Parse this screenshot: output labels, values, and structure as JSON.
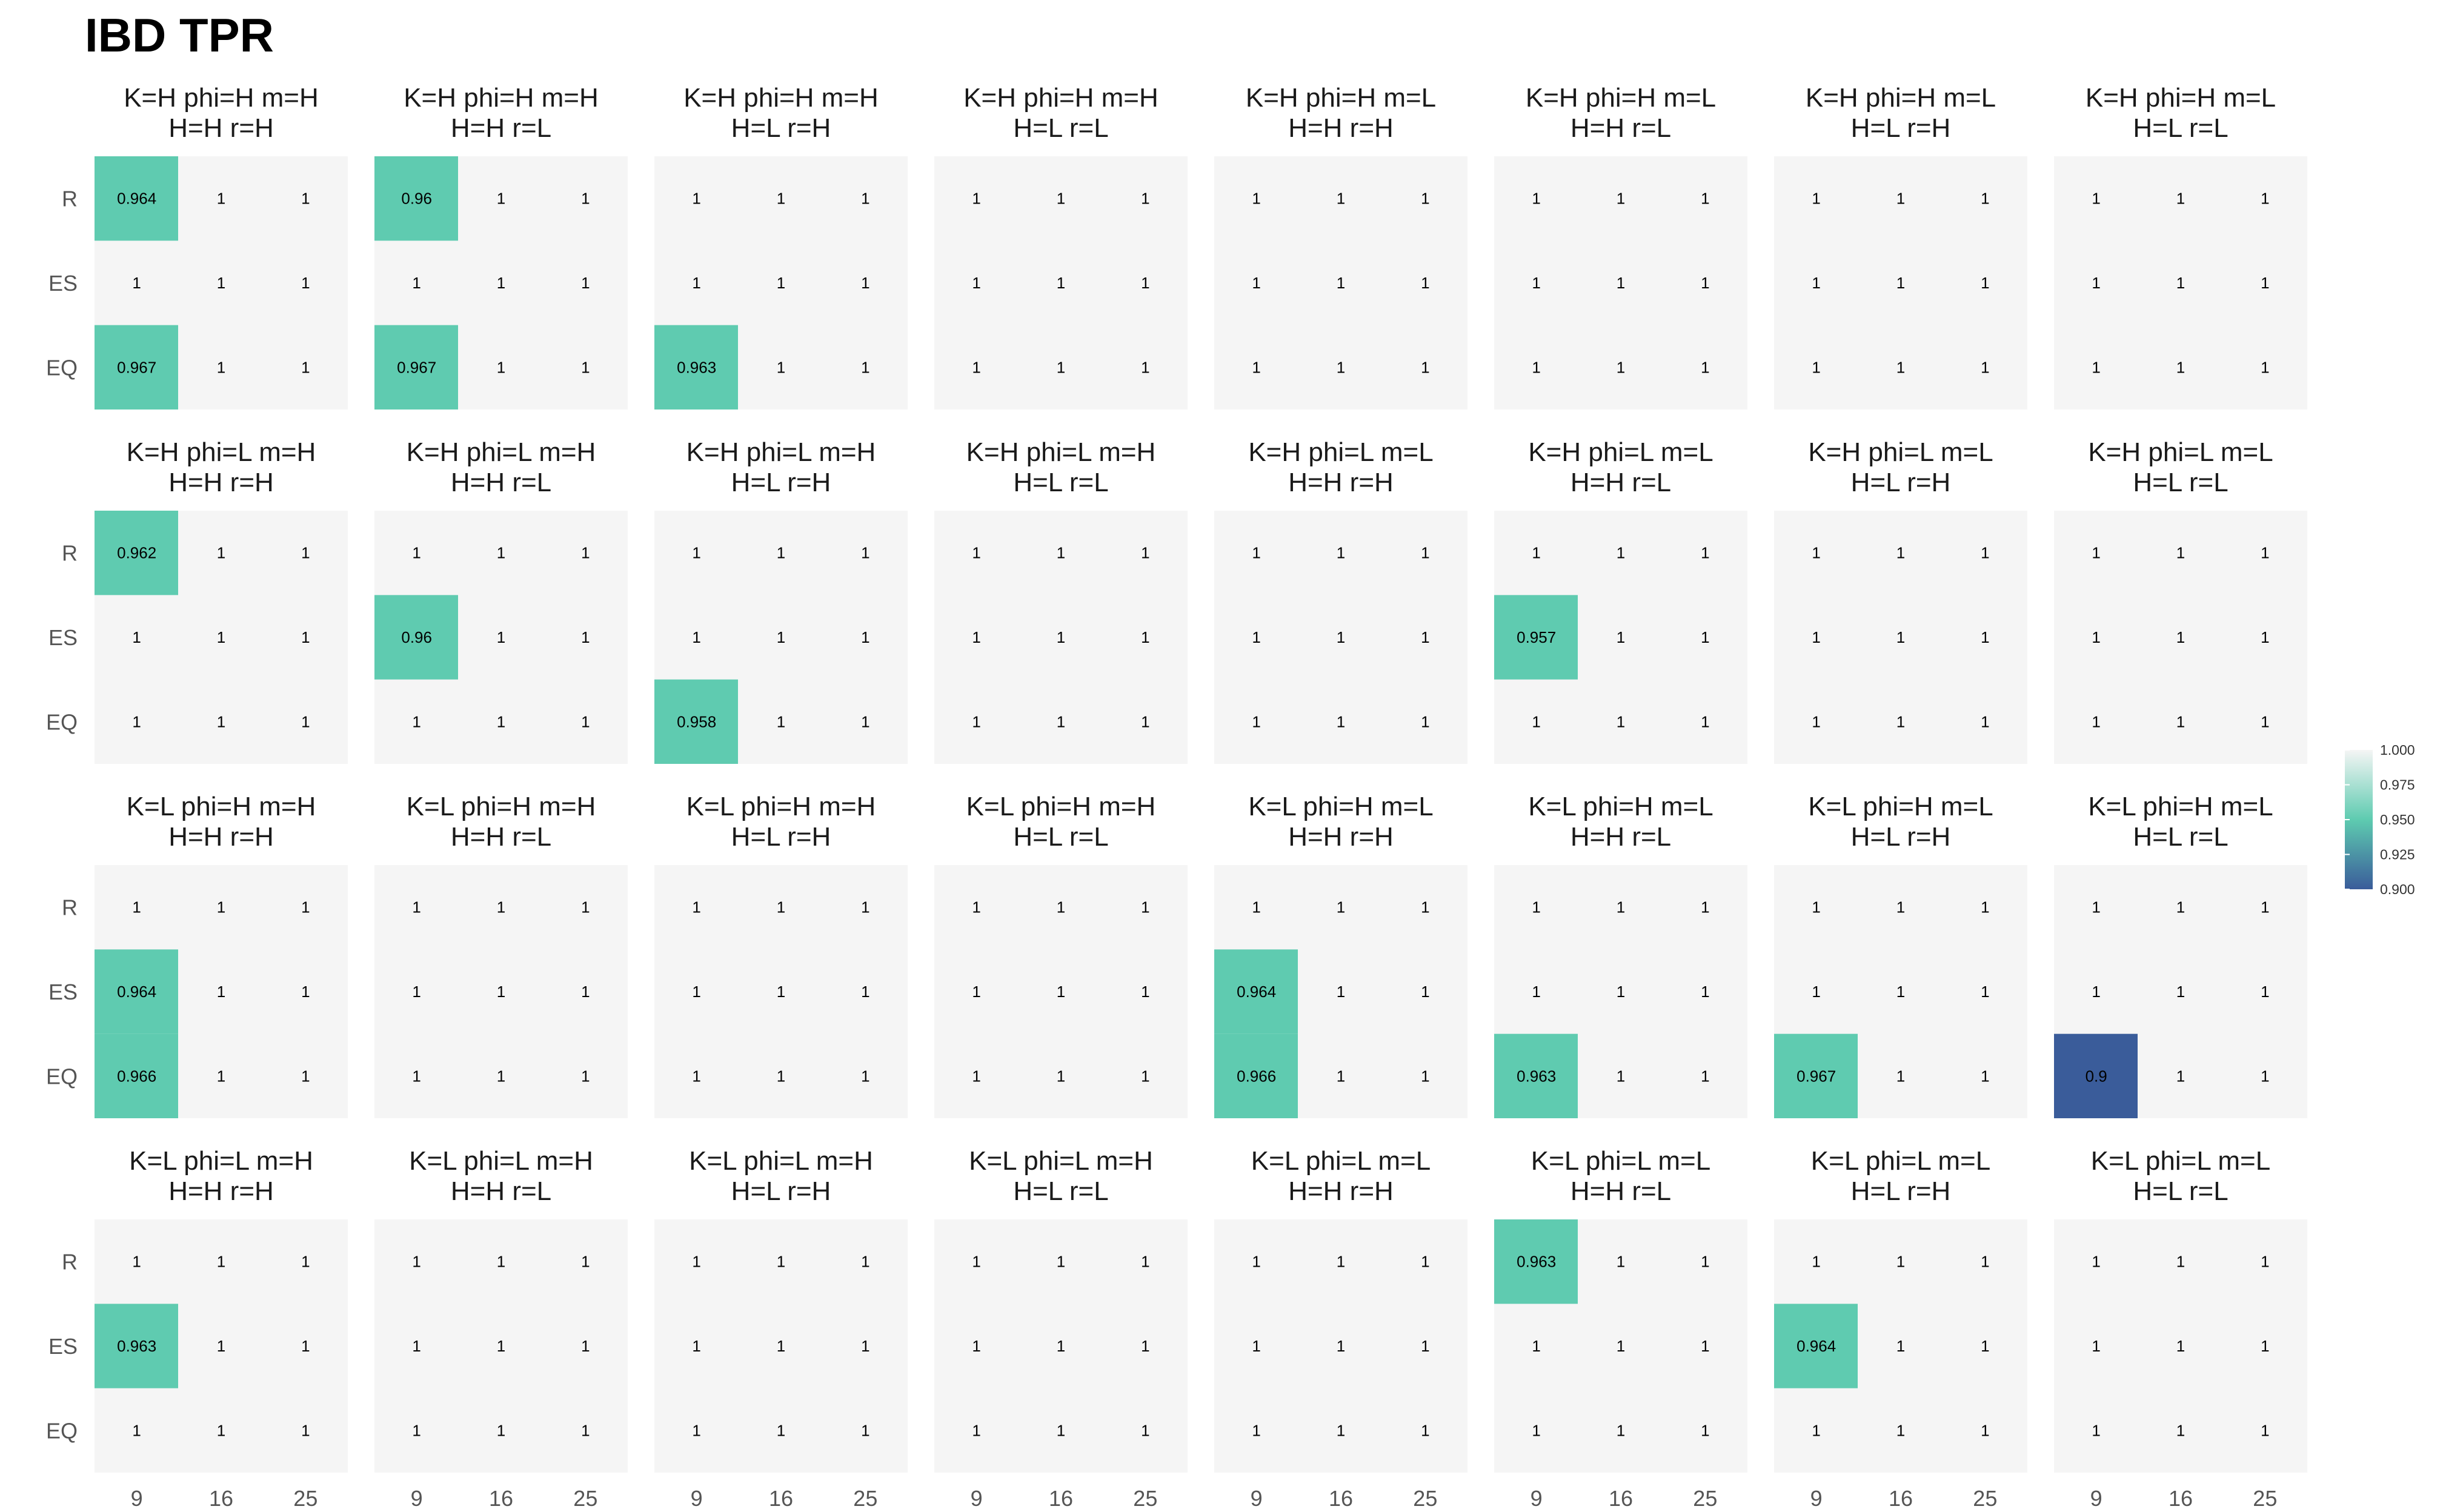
{
  "chart_data": {
    "type": "heatmap",
    "title": "IBD TPR",
    "x_categories": [
      "9",
      "16",
      "25"
    ],
    "y_categories": [
      "R",
      "ES",
      "EQ"
    ],
    "color_scale": {
      "min": 0.9,
      "max": 1.0,
      "breaks": [
        "1.000",
        "0.975",
        "0.950",
        "0.925",
        "0.900"
      ],
      "colors": {
        "low": "#3a5c9a",
        "mid": "#5ecbb0",
        "high": "#f5f5f5"
      }
    },
    "panel_background": "#f5f5f5",
    "panels": [
      {
        "title_line1": "K=H phi=H m=H",
        "title_line2": "H=H r=H",
        "values": [
          [
            0.964,
            1,
            1
          ],
          [
            1,
            1,
            1
          ],
          [
            0.967,
            1,
            1
          ]
        ]
      },
      {
        "title_line1": "K=H phi=H m=H",
        "title_line2": "H=H r=L",
        "values": [
          [
            0.96,
            1,
            1
          ],
          [
            1,
            1,
            1
          ],
          [
            0.967,
            1,
            1
          ]
        ]
      },
      {
        "title_line1": "K=H phi=H m=H",
        "title_line2": "H=L r=H",
        "values": [
          [
            1,
            1,
            1
          ],
          [
            1,
            1,
            1
          ],
          [
            0.963,
            1,
            1
          ]
        ]
      },
      {
        "title_line1": "K=H phi=H m=H",
        "title_line2": "H=L r=L",
        "values": [
          [
            1,
            1,
            1
          ],
          [
            1,
            1,
            1
          ],
          [
            1,
            1,
            1
          ]
        ]
      },
      {
        "title_line1": "K=H phi=H m=L",
        "title_line2": "H=H r=H",
        "values": [
          [
            1,
            1,
            1
          ],
          [
            1,
            1,
            1
          ],
          [
            1,
            1,
            1
          ]
        ]
      },
      {
        "title_line1": "K=H phi=H m=L",
        "title_line2": "H=H r=L",
        "values": [
          [
            1,
            1,
            1
          ],
          [
            1,
            1,
            1
          ],
          [
            1,
            1,
            1
          ]
        ]
      },
      {
        "title_line1": "K=H phi=H m=L",
        "title_line2": "H=L r=H",
        "values": [
          [
            1,
            1,
            1
          ],
          [
            1,
            1,
            1
          ],
          [
            1,
            1,
            1
          ]
        ]
      },
      {
        "title_line1": "K=H phi=H m=L",
        "title_line2": "H=L r=L",
        "values": [
          [
            1,
            1,
            1
          ],
          [
            1,
            1,
            1
          ],
          [
            1,
            1,
            1
          ]
        ]
      },
      {
        "title_line1": "K=H phi=L m=H",
        "title_line2": "H=H r=H",
        "values": [
          [
            0.962,
            1,
            1
          ],
          [
            1,
            1,
            1
          ],
          [
            1,
            1,
            1
          ]
        ]
      },
      {
        "title_line1": "K=H phi=L m=H",
        "title_line2": "H=H r=L",
        "values": [
          [
            1,
            1,
            1
          ],
          [
            0.96,
            1,
            1
          ],
          [
            1,
            1,
            1
          ]
        ]
      },
      {
        "title_line1": "K=H phi=L m=H",
        "title_line2": "H=L r=H",
        "values": [
          [
            1,
            1,
            1
          ],
          [
            1,
            1,
            1
          ],
          [
            0.958,
            1,
            1
          ]
        ]
      },
      {
        "title_line1": "K=H phi=L m=H",
        "title_line2": "H=L r=L",
        "values": [
          [
            1,
            1,
            1
          ],
          [
            1,
            1,
            1
          ],
          [
            1,
            1,
            1
          ]
        ]
      },
      {
        "title_line1": "K=H phi=L m=L",
        "title_line2": "H=H r=H",
        "values": [
          [
            1,
            1,
            1
          ],
          [
            1,
            1,
            1
          ],
          [
            1,
            1,
            1
          ]
        ]
      },
      {
        "title_line1": "K=H phi=L m=L",
        "title_line2": "H=H r=L",
        "values": [
          [
            1,
            1,
            1
          ],
          [
            0.957,
            1,
            1
          ],
          [
            1,
            1,
            1
          ]
        ]
      },
      {
        "title_line1": "K=H phi=L m=L",
        "title_line2": "H=L r=H",
        "values": [
          [
            1,
            1,
            1
          ],
          [
            1,
            1,
            1
          ],
          [
            1,
            1,
            1
          ]
        ]
      },
      {
        "title_line1": "K=H phi=L m=L",
        "title_line2": "H=L r=L",
        "values": [
          [
            1,
            1,
            1
          ],
          [
            1,
            1,
            1
          ],
          [
            1,
            1,
            1
          ]
        ]
      },
      {
        "title_line1": "K=L phi=H m=H",
        "title_line2": "H=H r=H",
        "values": [
          [
            1,
            1,
            1
          ],
          [
            0.964,
            1,
            1
          ],
          [
            0.966,
            1,
            1
          ]
        ]
      },
      {
        "title_line1": "K=L phi=H m=H",
        "title_line2": "H=H r=L",
        "values": [
          [
            1,
            1,
            1
          ],
          [
            1,
            1,
            1
          ],
          [
            1,
            1,
            1
          ]
        ]
      },
      {
        "title_line1": "K=L phi=H m=H",
        "title_line2": "H=L r=H",
        "values": [
          [
            1,
            1,
            1
          ],
          [
            1,
            1,
            1
          ],
          [
            1,
            1,
            1
          ]
        ]
      },
      {
        "title_line1": "K=L phi=H m=H",
        "title_line2": "H=L r=L",
        "values": [
          [
            1,
            1,
            1
          ],
          [
            1,
            1,
            1
          ],
          [
            1,
            1,
            1
          ]
        ]
      },
      {
        "title_line1": "K=L phi=H m=L",
        "title_line2": "H=H r=H",
        "values": [
          [
            1,
            1,
            1
          ],
          [
            0.964,
            1,
            1
          ],
          [
            0.966,
            1,
            1
          ]
        ]
      },
      {
        "title_line1": "K=L phi=H m=L",
        "title_line2": "H=H r=L",
        "values": [
          [
            1,
            1,
            1
          ],
          [
            1,
            1,
            1
          ],
          [
            0.963,
            1,
            1
          ]
        ]
      },
      {
        "title_line1": "K=L phi=H m=L",
        "title_line2": "H=L r=H",
        "values": [
          [
            1,
            1,
            1
          ],
          [
            1,
            1,
            1
          ],
          [
            0.967,
            1,
            1
          ]
        ]
      },
      {
        "title_line1": "K=L phi=H m=L",
        "title_line2": "H=L r=L",
        "values": [
          [
            1,
            1,
            1
          ],
          [
            1,
            1,
            1
          ],
          [
            0.9,
            1,
            1
          ]
        ]
      },
      {
        "title_line1": "K=L phi=L m=H",
        "title_line2": "H=H r=H",
        "values": [
          [
            1,
            1,
            1
          ],
          [
            0.963,
            1,
            1
          ],
          [
            1,
            1,
            1
          ]
        ]
      },
      {
        "title_line1": "K=L phi=L m=H",
        "title_line2": "H=H r=L",
        "values": [
          [
            1,
            1,
            1
          ],
          [
            1,
            1,
            1
          ],
          [
            1,
            1,
            1
          ]
        ]
      },
      {
        "title_line1": "K=L phi=L m=H",
        "title_line2": "H=L r=H",
        "values": [
          [
            1,
            1,
            1
          ],
          [
            1,
            1,
            1
          ],
          [
            1,
            1,
            1
          ]
        ]
      },
      {
        "title_line1": "K=L phi=L m=H",
        "title_line2": "H=L r=L",
        "values": [
          [
            1,
            1,
            1
          ],
          [
            1,
            1,
            1
          ],
          [
            1,
            1,
            1
          ]
        ]
      },
      {
        "title_line1": "K=L phi=L m=L",
        "title_line2": "H=H r=H",
        "values": [
          [
            1,
            1,
            1
          ],
          [
            1,
            1,
            1
          ],
          [
            1,
            1,
            1
          ]
        ]
      },
      {
        "title_line1": "K=L phi=L m=L",
        "title_line2": "H=H r=L",
        "values": [
          [
            0.963,
            1,
            1
          ],
          [
            1,
            1,
            1
          ],
          [
            1,
            1,
            1
          ]
        ]
      },
      {
        "title_line1": "K=L phi=L m=L",
        "title_line2": "H=L r=H",
        "values": [
          [
            1,
            1,
            1
          ],
          [
            0.964,
            1,
            1
          ],
          [
            1,
            1,
            1
          ]
        ]
      },
      {
        "title_line1": "K=L phi=L m=L",
        "title_line2": "H=L r=L",
        "values": [
          [
            1,
            1,
            1
          ],
          [
            1,
            1,
            1
          ],
          [
            1,
            1,
            1
          ]
        ]
      }
    ]
  }
}
